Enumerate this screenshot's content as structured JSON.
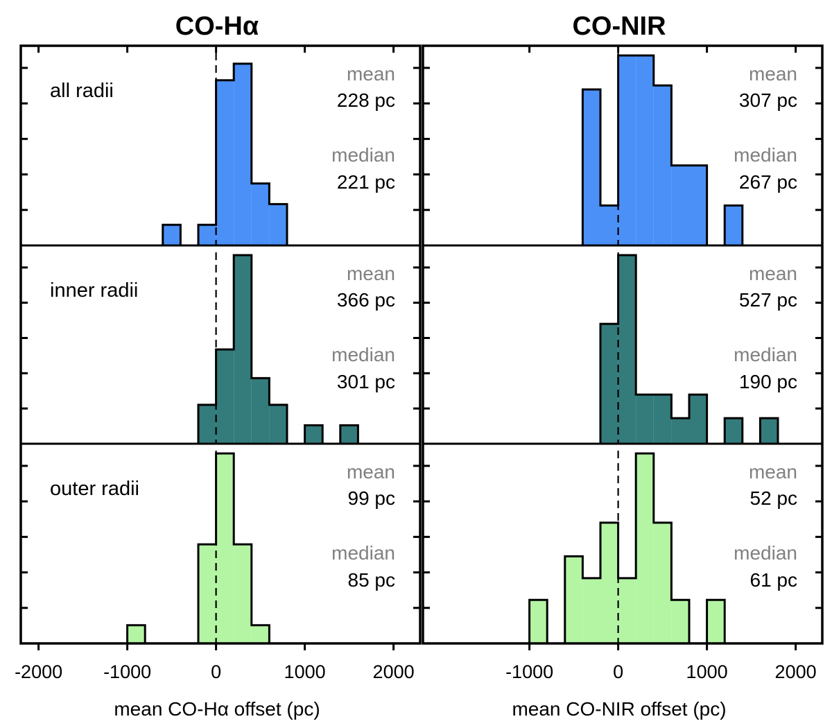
{
  "chart_data": {
    "type": "bar",
    "bin_width": 200,
    "columns": [
      {
        "title": "CO-Hα",
        "xlabel": "mean CO-Hα offset (pc)",
        "xlim": [
          -2200,
          2300
        ],
        "xticks": [
          -2000,
          -1000,
          0,
          1000,
          2000
        ],
        "tick_labels": [
          "-2000",
          "-1000",
          "0",
          "1000",
          "2000"
        ],
        "color_edge": "#000000"
      },
      {
        "title": "CO-NIR",
        "xlabel": "mean CO-NIR offset (pc)",
        "xlim": [
          -2200,
          2300
        ],
        "xticks": [
          -1000,
          0,
          1000,
          2000
        ],
        "tick_labels": [
          "-1000",
          "0",
          "1000",
          "2000"
        ],
        "color_edge": "#000000"
      }
    ],
    "rows": [
      {
        "label": "all radii",
        "color": "#4a90f7"
      },
      {
        "label": "inner radii",
        "color": "#347b7c"
      },
      {
        "label": "outer radii",
        "color": "#b4f5a4"
      }
    ],
    "panels": [
      {
        "column": 0,
        "row": 0,
        "ylim": [
          0,
          9.2
        ],
        "bins": [
          [
            -600,
            1
          ],
          [
            -200,
            1
          ],
          [
            0,
            8
          ],
          [
            200,
            8.8
          ],
          [
            400,
            3
          ],
          [
            600,
            2
          ]
        ],
        "stats": {
          "mean_key": "mean",
          "mean_value": "228 pc",
          "median_key": "median",
          "median_value": "221 pc"
        }
      },
      {
        "column": 1,
        "row": 0,
        "ylim": [
          0,
          9.5
        ],
        "bins": [
          [
            -400,
            7.8
          ],
          [
            -200,
            2
          ],
          [
            0,
            9.5
          ],
          [
            200,
            9.5
          ],
          [
            400,
            8
          ],
          [
            600,
            4
          ],
          [
            800,
            4
          ],
          [
            1200,
            2
          ]
        ],
        "stats": {
          "mean_key": "mean",
          "mean_value": "307 pc",
          "median_key": "median",
          "median_value": "267 pc"
        }
      },
      {
        "column": 0,
        "row": 1,
        "ylim": [
          0,
          9.2
        ],
        "bins": [
          [
            -200,
            1.9
          ],
          [
            0,
            4.6
          ],
          [
            200,
            9.2
          ],
          [
            400,
            3.2
          ],
          [
            600,
            1.9
          ],
          [
            1000,
            0.9
          ],
          [
            1400,
            0.9
          ]
        ],
        "stats": {
          "mean_key": "mean",
          "mean_value": "366 pc",
          "median_key": "median",
          "median_value": "301 pc"
        }
      },
      {
        "column": 1,
        "row": 1,
        "ylim": [
          0,
          9.6
        ],
        "bins": [
          [
            -200,
            6.1
          ],
          [
            0,
            9.6
          ],
          [
            200,
            2.5
          ],
          [
            400,
            2.5
          ],
          [
            600,
            1.3
          ],
          [
            800,
            2.5
          ],
          [
            1200,
            1.3
          ],
          [
            1600,
            1.3
          ]
        ],
        "stats": {
          "mean_key": "mean",
          "mean_value": "527 pc",
          "median_key": "median",
          "median_value": "190 pc"
        }
      },
      {
        "column": 0,
        "row": 2,
        "ylim": [
          0,
          9.4
        ],
        "bins": [
          [
            -1000,
            0.9
          ],
          [
            -200,
            4.9
          ],
          [
            0,
            9.4
          ],
          [
            200,
            4.9
          ],
          [
            400,
            0.9
          ]
        ],
        "stats": {
          "mean_key": "mean",
          "mean_value": "99 pc",
          "median_key": "median",
          "median_value": "85 pc"
        }
      },
      {
        "column": 1,
        "row": 2,
        "ylim": [
          0,
          9.6
        ],
        "bins": [
          [
            -1000,
            2.2
          ],
          [
            -600,
            4.4
          ],
          [
            -400,
            3.3
          ],
          [
            -200,
            6.1
          ],
          [
            0,
            3.3
          ],
          [
            200,
            9.6
          ],
          [
            400,
            6.1
          ],
          [
            600,
            2.2
          ],
          [
            1000,
            2.2
          ]
        ],
        "stats": {
          "mean_key": "mean",
          "mean_value": "52 pc",
          "median_key": "median",
          "median_value": "61 pc"
        }
      }
    ],
    "reference_line": {
      "x": 0,
      "style": "dashed"
    }
  }
}
